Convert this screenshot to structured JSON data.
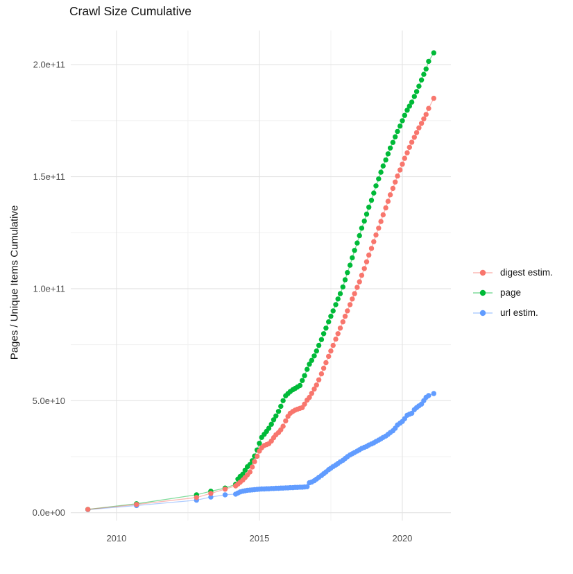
{
  "title": "Crawl Size Cumulative",
  "y_axis": {
    "label": "Pages / Unique Items Cumulative",
    "tick_labels": [
      "0.0e+00",
      "5.0e+10",
      "1.0e+11",
      "1.5e+11",
      "2.0e+11"
    ],
    "tick_values_billion": [
      0,
      50,
      100,
      150,
      200
    ],
    "minor_gridlines_billion": [
      25,
      75,
      125,
      175
    ]
  },
  "x_axis": {
    "label": "",
    "tick_labels": [
      "2010",
      "2015",
      "2020"
    ],
    "tick_values": [
      2010,
      2015,
      2020
    ],
    "minor_gridlines": [
      2012.5,
      2017.5
    ]
  },
  "legend": {
    "position": "right",
    "items": [
      {
        "label": "digest estim.",
        "color": "#F8766D"
      },
      {
        "label": "page",
        "color": "#00BA38"
      },
      {
        "label": "url estim.",
        "color": "#619CFF"
      }
    ]
  },
  "chart_data": {
    "type": "line",
    "title": "Crawl Size Cumulative",
    "xlabel": "",
    "ylabel": "Pages / Unique Items Cumulative",
    "y_unit": "items, billions (1e9); axis shown in scientific notation",
    "xlim": [
      2008.4,
      2021.7
    ],
    "ylim_billion": [
      -3.5,
      215.25
    ],
    "grid": true,
    "legend_position": "right",
    "marker": "point-with-line",
    "series": [
      {
        "name": "url estim.",
        "color": "#619CFF",
        "points": [
          [
            2009,
            1.4
          ],
          [
            2010.7,
            3.2
          ],
          [
            2012.8,
            5.6
          ],
          [
            2013.3,
            7
          ],
          [
            2013.8,
            8
          ],
          [
            2014.17,
            8.3
          ],
          [
            2014.25,
            8.8
          ],
          [
            2014.33,
            9.3
          ],
          [
            2014.42,
            9.6
          ],
          [
            2014.5,
            9.8
          ],
          [
            2014.58,
            10
          ],
          [
            2014.67,
            10.1
          ],
          [
            2014.75,
            10.2
          ],
          [
            2014.83,
            10.3
          ],
          [
            2014.92,
            10.4
          ],
          [
            2015,
            10.5
          ],
          [
            2015.08,
            10.6
          ],
          [
            2015.17,
            10.6
          ],
          [
            2015.25,
            10.7
          ],
          [
            2015.33,
            10.7
          ],
          [
            2015.42,
            10.8
          ],
          [
            2015.5,
            10.8
          ],
          [
            2015.58,
            10.9
          ],
          [
            2015.67,
            10.9
          ],
          [
            2015.75,
            11
          ],
          [
            2015.83,
            11
          ],
          [
            2015.92,
            11.1
          ],
          [
            2016,
            11.1
          ],
          [
            2016.08,
            11.2
          ],
          [
            2016.17,
            11.2
          ],
          [
            2016.25,
            11.3
          ],
          [
            2016.33,
            11.3
          ],
          [
            2016.42,
            11.4
          ],
          [
            2016.5,
            11.4
          ],
          [
            2016.58,
            11.5
          ],
          [
            2016.67,
            11.6
          ],
          [
            2016.75,
            13.4
          ],
          [
            2016.83,
            13.7
          ],
          [
            2016.92,
            14.3
          ],
          [
            2017,
            15
          ],
          [
            2017.08,
            15.8
          ],
          [
            2017.17,
            16.6
          ],
          [
            2017.25,
            17.4
          ],
          [
            2017.33,
            18.2
          ],
          [
            2017.42,
            19.2
          ],
          [
            2017.5,
            19.9
          ],
          [
            2017.58,
            20.6
          ],
          [
            2017.67,
            21.3
          ],
          [
            2017.75,
            22
          ],
          [
            2017.83,
            22.7
          ],
          [
            2017.92,
            23.4
          ],
          [
            2018,
            24.2
          ],
          [
            2018.08,
            25
          ],
          [
            2018.17,
            25.8
          ],
          [
            2018.25,
            26.3
          ],
          [
            2018.33,
            26.9
          ],
          [
            2018.42,
            27.5
          ],
          [
            2018.5,
            28.1
          ],
          [
            2018.58,
            28.7
          ],
          [
            2018.67,
            29.2
          ],
          [
            2018.75,
            29.6
          ],
          [
            2018.83,
            30.2
          ],
          [
            2018.92,
            30.7
          ],
          [
            2019,
            31.2
          ],
          [
            2019.08,
            31.8
          ],
          [
            2019.17,
            32.4
          ],
          [
            2019.25,
            33
          ],
          [
            2019.33,
            33.6
          ],
          [
            2019.42,
            34.2
          ],
          [
            2019.5,
            35
          ],
          [
            2019.58,
            35.8
          ],
          [
            2019.67,
            36.6
          ],
          [
            2019.75,
            37.7
          ],
          [
            2019.83,
            39.2
          ],
          [
            2019.92,
            40
          ],
          [
            2020,
            40.7
          ],
          [
            2020.08,
            42
          ],
          [
            2020.17,
            43.5
          ],
          [
            2020.25,
            44
          ],
          [
            2020.33,
            44.4
          ],
          [
            2020.42,
            46
          ],
          [
            2020.5,
            46.9
          ],
          [
            2020.58,
            47.7
          ],
          [
            2020.67,
            48.5
          ],
          [
            2020.75,
            50
          ],
          [
            2020.83,
            51.5
          ],
          [
            2020.92,
            52.3
          ],
          [
            2021.1,
            53.2
          ]
        ]
      },
      {
        "name": "page",
        "color": "#00BA38",
        "points": [
          [
            2009,
            1.5
          ],
          [
            2010.7,
            4
          ],
          [
            2012.8,
            8
          ],
          [
            2013.3,
            9.6
          ],
          [
            2013.8,
            11
          ],
          [
            2014.17,
            12.7
          ],
          [
            2014.25,
            15
          ],
          [
            2014.33,
            16.2
          ],
          [
            2014.42,
            17.2
          ],
          [
            2014.5,
            19
          ],
          [
            2014.58,
            20.5
          ],
          [
            2014.67,
            21.5
          ],
          [
            2014.75,
            23.2
          ],
          [
            2014.83,
            25.3
          ],
          [
            2014.92,
            28
          ],
          [
            2015,
            31
          ],
          [
            2015.08,
            33.6
          ],
          [
            2015.17,
            35
          ],
          [
            2015.25,
            36.3
          ],
          [
            2015.33,
            37.7
          ],
          [
            2015.42,
            39.5
          ],
          [
            2015.5,
            41.5
          ],
          [
            2015.58,
            43.2
          ],
          [
            2015.67,
            45.2
          ],
          [
            2015.75,
            47.5
          ],
          [
            2015.83,
            50
          ],
          [
            2015.92,
            52.2
          ],
          [
            2016,
            53.2
          ],
          [
            2016.08,
            54.1
          ],
          [
            2016.17,
            54.9
          ],
          [
            2016.25,
            55.5
          ],
          [
            2016.33,
            56.1
          ],
          [
            2016.42,
            56.8
          ],
          [
            2016.5,
            59
          ],
          [
            2016.58,
            61.2
          ],
          [
            2016.67,
            64
          ],
          [
            2016.75,
            66.3
          ],
          [
            2016.83,
            68
          ],
          [
            2016.92,
            70
          ],
          [
            2017,
            72.2
          ],
          [
            2017.08,
            74.7
          ],
          [
            2017.17,
            77.3
          ],
          [
            2017.25,
            79.9
          ],
          [
            2017.33,
            82.4
          ],
          [
            2017.42,
            85.2
          ],
          [
            2017.5,
            87.7
          ],
          [
            2017.58,
            90.1
          ],
          [
            2017.67,
            92.9
          ],
          [
            2017.75,
            95.4
          ],
          [
            2017.83,
            97.8
          ],
          [
            2017.92,
            100.8
          ],
          [
            2018,
            104
          ],
          [
            2018.08,
            107.2
          ],
          [
            2018.17,
            110.5
          ],
          [
            2018.25,
            113.8
          ],
          [
            2018.33,
            117.1
          ],
          [
            2018.42,
            120.4
          ],
          [
            2018.5,
            123.7
          ],
          [
            2018.58,
            127
          ],
          [
            2018.67,
            130.2
          ],
          [
            2018.75,
            133.3
          ],
          [
            2018.83,
            136.4
          ],
          [
            2018.92,
            139.5
          ],
          [
            2019,
            142.7
          ],
          [
            2019.08,
            145.9
          ],
          [
            2019.17,
            149
          ],
          [
            2019.25,
            152
          ],
          [
            2019.33,
            154.8
          ],
          [
            2019.42,
            157.5
          ],
          [
            2019.5,
            160.2
          ],
          [
            2019.58,
            162.8
          ],
          [
            2019.67,
            165.3
          ],
          [
            2019.75,
            167.8
          ],
          [
            2019.83,
            170.2
          ],
          [
            2019.92,
            172.6
          ],
          [
            2020,
            175
          ],
          [
            2020.08,
            177.4
          ],
          [
            2020.17,
            179.7
          ],
          [
            2020.25,
            181.5
          ],
          [
            2020.33,
            183.3
          ],
          [
            2020.42,
            185.8
          ],
          [
            2020.5,
            188
          ],
          [
            2020.58,
            190.4
          ],
          [
            2020.67,
            193.2
          ],
          [
            2020.75,
            195.7
          ],
          [
            2020.83,
            198.1
          ],
          [
            2020.92,
            201.5
          ],
          [
            2021.1,
            205.3
          ]
        ]
      },
      {
        "name": "digest estim.",
        "color": "#F8766D",
        "points": [
          [
            2009,
            1.5
          ],
          [
            2010.7,
            3.7
          ],
          [
            2012.8,
            6.8
          ],
          [
            2013.3,
            8.6
          ],
          [
            2013.8,
            10.5
          ],
          [
            2014.17,
            12
          ],
          [
            2014.25,
            12.8
          ],
          [
            2014.33,
            13.6
          ],
          [
            2014.42,
            14.6
          ],
          [
            2014.5,
            15.7
          ],
          [
            2014.58,
            16.9
          ],
          [
            2014.67,
            18.2
          ],
          [
            2014.75,
            20.4
          ],
          [
            2014.83,
            22.8
          ],
          [
            2014.92,
            25.2
          ],
          [
            2015,
            27.5
          ],
          [
            2015.08,
            29
          ],
          [
            2015.17,
            30
          ],
          [
            2015.25,
            30.4
          ],
          [
            2015.33,
            30.8
          ],
          [
            2015.42,
            32
          ],
          [
            2015.5,
            33.5
          ],
          [
            2015.58,
            34.8
          ],
          [
            2015.67,
            35.8
          ],
          [
            2015.75,
            37
          ],
          [
            2015.83,
            38.6
          ],
          [
            2015.92,
            41
          ],
          [
            2016,
            43
          ],
          [
            2016.08,
            44.4
          ],
          [
            2016.17,
            45.2
          ],
          [
            2016.25,
            45.8
          ],
          [
            2016.33,
            46.2
          ],
          [
            2016.42,
            46.6
          ],
          [
            2016.5,
            46.9
          ],
          [
            2016.58,
            48.5
          ],
          [
            2016.67,
            50.3
          ],
          [
            2016.75,
            51.5
          ],
          [
            2016.83,
            53.3
          ],
          [
            2016.92,
            55.2
          ],
          [
            2017,
            57
          ],
          [
            2017.08,
            59.3
          ],
          [
            2017.17,
            62
          ],
          [
            2017.25,
            64.5
          ],
          [
            2017.33,
            67
          ],
          [
            2017.42,
            69.8
          ],
          [
            2017.5,
            72.2
          ],
          [
            2017.58,
            74.7
          ],
          [
            2017.67,
            77.5
          ],
          [
            2017.75,
            79.9
          ],
          [
            2017.83,
            82.4
          ],
          [
            2017.92,
            85.2
          ],
          [
            2018,
            87.7
          ],
          [
            2018.08,
            90.1
          ],
          [
            2018.17,
            92.9
          ],
          [
            2018.25,
            95.4
          ],
          [
            2018.33,
            97.8
          ],
          [
            2018.42,
            100.6
          ],
          [
            2018.5,
            103.1
          ],
          [
            2018.58,
            106
          ],
          [
            2018.67,
            109
          ],
          [
            2018.75,
            112
          ],
          [
            2018.83,
            115
          ],
          [
            2018.92,
            118
          ],
          [
            2019,
            121
          ],
          [
            2019.08,
            124
          ],
          [
            2019.17,
            127
          ],
          [
            2019.25,
            130
          ],
          [
            2019.33,
            133
          ],
          [
            2019.42,
            136.1
          ],
          [
            2019.5,
            139
          ],
          [
            2019.58,
            141.9
          ],
          [
            2019.67,
            144.8
          ],
          [
            2019.75,
            147.6
          ],
          [
            2019.83,
            150.3
          ],
          [
            2019.92,
            153
          ],
          [
            2020,
            155.6
          ],
          [
            2020.08,
            158.2
          ],
          [
            2020.17,
            160.7
          ],
          [
            2020.25,
            163.1
          ],
          [
            2020.33,
            165.4
          ],
          [
            2020.42,
            167.6
          ],
          [
            2020.5,
            169.7
          ],
          [
            2020.58,
            171.8
          ],
          [
            2020.67,
            173.8
          ],
          [
            2020.75,
            175.8
          ],
          [
            2020.83,
            177.8
          ],
          [
            2020.92,
            180.5
          ],
          [
            2021.1,
            185
          ]
        ]
      }
    ],
    "style": {
      "major_grid_color": "#E3E3E3",
      "minor_grid_color": "#F1F1F1",
      "background": "#FFFFFF",
      "point_radius": 3.7,
      "line_opacity": 0.5
    }
  }
}
